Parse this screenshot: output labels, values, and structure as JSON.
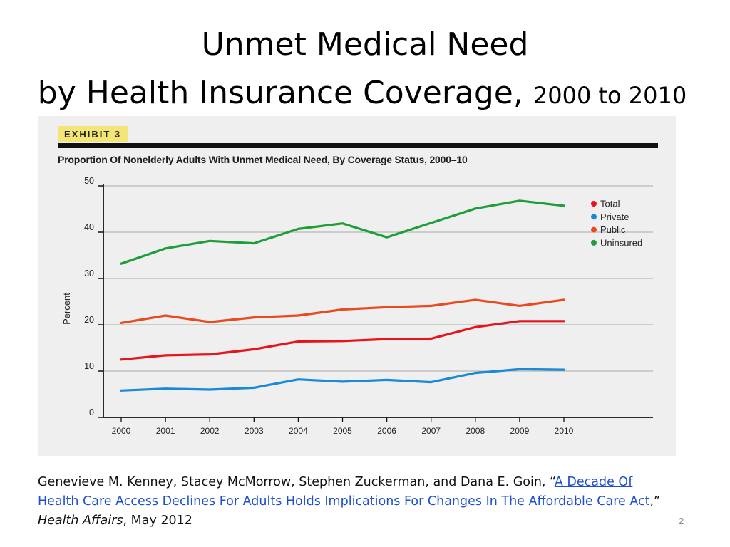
{
  "slide": {
    "title_line1": "Unmet Medical Need",
    "title_line2_main": "by Health Insurance Coverage,",
    "title_line2_small": "2000 to 2010",
    "page_number": "2"
  },
  "exhibit": {
    "tag": "EXHIBIT 3",
    "subtitle": "Proportion Of Nonelderly Adults With Unmet Medical Need, By Coverage Status, 2000–10"
  },
  "citation": {
    "authors": "Genevieve M. Kenney, Stacey McMorrow, Stephen Zuckerman, and Dana E. Goin, “",
    "link_text_1": "A Decade Of",
    "link_text_2": "Health Care Access Declines For Adults Holds Implications For Changes In The Affordable Care Act",
    "after_link": ",”",
    "journal": "Health Affairs",
    "date": ", May 2012"
  },
  "chart_data": {
    "type": "line",
    "title": "Proportion Of Nonelderly Adults With Unmet Medical Need, By Coverage Status, 2000–10",
    "xlabel": "",
    "ylabel": "Percent",
    "ylim": [
      0,
      50
    ],
    "yticks": [
      0,
      10,
      20,
      30,
      40,
      50
    ],
    "categories": [
      "2000",
      "2001",
      "2002",
      "2003",
      "2004",
      "2005",
      "2006",
      "2007",
      "2008",
      "2009",
      "2010"
    ],
    "legend_position": "top-right",
    "grid": true,
    "series": [
      {
        "name": "Total",
        "color": "#e8141c",
        "values": [
          12.5,
          13.4,
          13.6,
          14.7,
          16.4,
          16.5,
          16.9,
          17.0,
          19.5,
          20.8,
          20.8
        ]
      },
      {
        "name": "Private",
        "color": "#1a8ad8",
        "values": [
          5.8,
          6.2,
          6.0,
          6.4,
          8.2,
          7.7,
          8.1,
          7.6,
          9.6,
          10.4,
          10.3
        ]
      },
      {
        "name": "Public",
        "color": "#ea4a1f",
        "values": [
          20.4,
          22.0,
          20.6,
          21.6,
          22.0,
          23.3,
          23.8,
          24.1,
          25.4,
          24.1,
          25.4
        ]
      },
      {
        "name": "Uninsured",
        "color": "#1f9e3a",
        "values": [
          33.2,
          36.5,
          38.1,
          37.6,
          40.7,
          41.9,
          38.9,
          42.0,
          45.1,
          46.8,
          45.7
        ]
      }
    ]
  }
}
